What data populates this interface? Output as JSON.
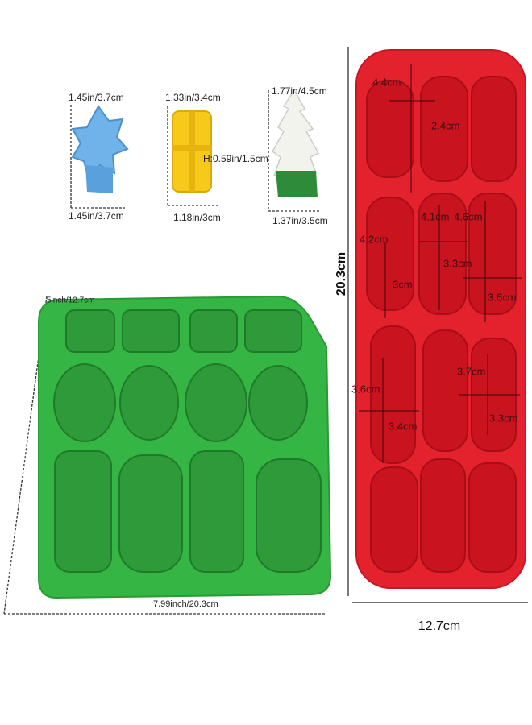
{
  "pieces": [
    {
      "top": "1.45in/3.7cm",
      "bottom": "1.45in/3.7cm"
    },
    {
      "top": "1.33in/3.4cm",
      "height": "H:0.59in/1.5cm",
      "bottom": "1.18in/3cm"
    },
    {
      "top": "1.77in/4.5cm",
      "bottom": "1.37in/3.5cm"
    }
  ],
  "green_tray": {
    "height": "5inch/12.7cm",
    "width": "7.99inch/20.3cm"
  },
  "red_tray": {
    "height": "20.3cm",
    "width": "12.7cm",
    "labels": [
      "4.4cm",
      "2.4cm",
      "4.2cm",
      "4.1cm",
      "4.6cm",
      "3.3cm",
      "3cm",
      "3.6cm",
      "3.6cm",
      "3.7cm",
      "3.4cm",
      "3.3cm"
    ]
  }
}
